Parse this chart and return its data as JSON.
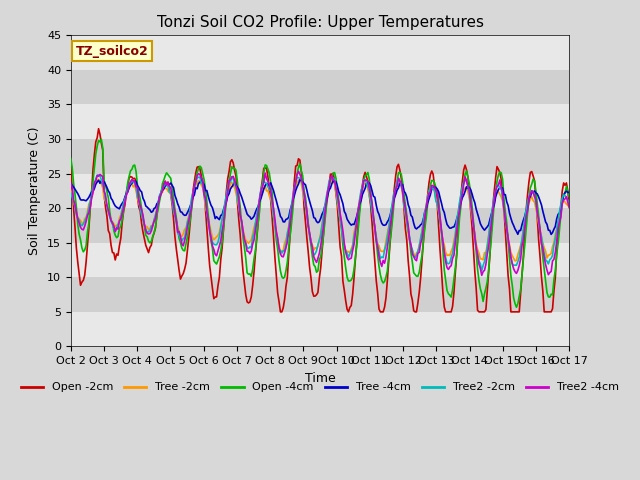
{
  "title": "Tonzi Soil CO2 Profile: Upper Temperatures",
  "ylabel": "Soil Temperature (C)",
  "xlabel": "Time",
  "watermark": "TZ_soilco2",
  "ylim": [
    0,
    45
  ],
  "figsize": [
    6.4,
    4.8
  ],
  "dpi": 100,
  "background_color": "#d8d8d8",
  "plot_bg_color": "#d8d8d8",
  "series": {
    "Open -2cm": {
      "color": "#cc0000",
      "lw": 1.2
    },
    "Tree -2cm": {
      "color": "#ff9900",
      "lw": 1.2
    },
    "Open -4cm": {
      "color": "#00bb00",
      "lw": 1.2
    },
    "Tree -4cm": {
      "color": "#0000cc",
      "lw": 1.2
    },
    "Tree2 -2cm": {
      "color": "#00bbbb",
      "lw": 1.2
    },
    "Tree2 -4cm": {
      "color": "#cc00cc",
      "lw": 1.2
    }
  },
  "xtick_labels": [
    "Oct 2",
    "Oct 3",
    "Oct 4",
    "Oct 5",
    "Oct 6",
    "Oct 7",
    "Oct 8",
    "Oct 9",
    "Oct 10",
    "Oct 11",
    "Oct 12",
    "Oct 13",
    "Oct 14",
    "Oct 15",
    "Oct 16",
    "Oct 17"
  ],
  "title_fontsize": 11,
  "axis_label_fontsize": 9,
  "tick_fontsize": 8,
  "legend_fontsize": 8
}
